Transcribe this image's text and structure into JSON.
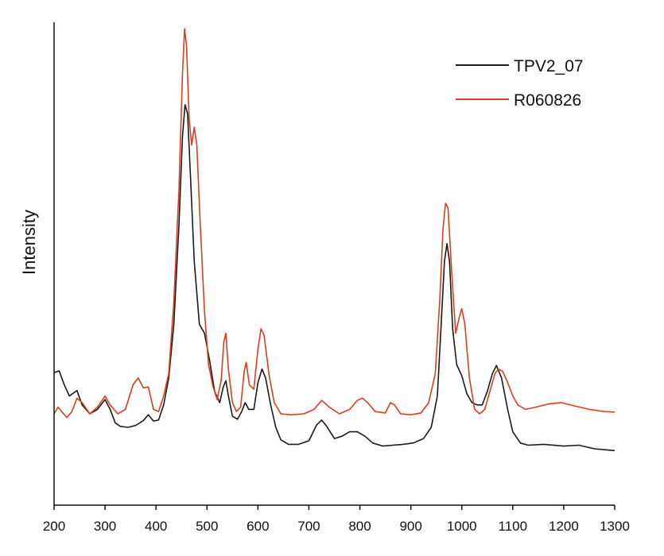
{
  "chart_data": {
    "type": "line",
    "title": "",
    "xlabel": "",
    "ylabel": "Intensity",
    "xlim": [
      200,
      1300
    ],
    "ylim": [
      0,
      1
    ],
    "x_ticks": [
      200,
      300,
      400,
      500,
      600,
      700,
      800,
      900,
      1000,
      1100,
      1200,
      1300
    ],
    "grid": false,
    "legend_position": "top-right",
    "series": [
      {
        "name": "TPV2_07",
        "color": "#1a1a1a",
        "points": [
          [
            200,
            0.232
          ],
          [
            210,
            0.236
          ],
          [
            220,
            0.205
          ],
          [
            230,
            0.18
          ],
          [
            245,
            0.192
          ],
          [
            255,
            0.16
          ],
          [
            270,
            0.14
          ],
          [
            285,
            0.15
          ],
          [
            300,
            0.172
          ],
          [
            310,
            0.15
          ],
          [
            320,
            0.12
          ],
          [
            330,
            0.112
          ],
          [
            345,
            0.11
          ],
          [
            360,
            0.114
          ],
          [
            375,
            0.125
          ],
          [
            385,
            0.138
          ],
          [
            395,
            0.124
          ],
          [
            405,
            0.126
          ],
          [
            415,
            0.16
          ],
          [
            425,
            0.22
          ],
          [
            435,
            0.34
          ],
          [
            445,
            0.56
          ],
          [
            452,
            0.76
          ],
          [
            457,
            0.83
          ],
          [
            462,
            0.81
          ],
          [
            468,
            0.66
          ],
          [
            475,
            0.48
          ],
          [
            485,
            0.34
          ],
          [
            495,
            0.32
          ],
          [
            505,
            0.26
          ],
          [
            515,
            0.19
          ],
          [
            525,
            0.165
          ],
          [
            532,
            0.2
          ],
          [
            537,
            0.214
          ],
          [
            542,
            0.18
          ],
          [
            550,
            0.135
          ],
          [
            560,
            0.128
          ],
          [
            568,
            0.145
          ],
          [
            575,
            0.165
          ],
          [
            582,
            0.15
          ],
          [
            592,
            0.15
          ],
          [
            600,
            0.21
          ],
          [
            608,
            0.24
          ],
          [
            615,
            0.22
          ],
          [
            625,
            0.16
          ],
          [
            635,
            0.11
          ],
          [
            645,
            0.082
          ],
          [
            660,
            0.072
          ],
          [
            680,
            0.072
          ],
          [
            700,
            0.08
          ],
          [
            715,
            0.115
          ],
          [
            725,
            0.126
          ],
          [
            735,
            0.112
          ],
          [
            750,
            0.085
          ],
          [
            765,
            0.09
          ],
          [
            780,
            0.1
          ],
          [
            795,
            0.1
          ],
          [
            810,
            0.09
          ],
          [
            825,
            0.075
          ],
          [
            845,
            0.068
          ],
          [
            865,
            0.07
          ],
          [
            885,
            0.072
          ],
          [
            905,
            0.075
          ],
          [
            925,
            0.085
          ],
          [
            940,
            0.11
          ],
          [
            952,
            0.18
          ],
          [
            960,
            0.35
          ],
          [
            966,
            0.48
          ],
          [
            971,
            0.52
          ],
          [
            976,
            0.48
          ],
          [
            982,
            0.33
          ],
          [
            990,
            0.25
          ],
          [
            1000,
            0.225
          ],
          [
            1010,
            0.185
          ],
          [
            1020,
            0.165
          ],
          [
            1030,
            0.16
          ],
          [
            1040,
            0.16
          ],
          [
            1050,
            0.19
          ],
          [
            1060,
            0.23
          ],
          [
            1068,
            0.248
          ],
          [
            1078,
            0.22
          ],
          [
            1090,
            0.15
          ],
          [
            1100,
            0.1
          ],
          [
            1115,
            0.075
          ],
          [
            1130,
            0.07
          ],
          [
            1160,
            0.072
          ],
          [
            1200,
            0.068
          ],
          [
            1230,
            0.07
          ],
          [
            1260,
            0.062
          ],
          [
            1300,
            0.058
          ]
        ]
      },
      {
        "name": "R060826",
        "color": "#e03c1c",
        "points": [
          [
            200,
            0.14
          ],
          [
            208,
            0.155
          ],
          [
            215,
            0.145
          ],
          [
            225,
            0.132
          ],
          [
            235,
            0.145
          ],
          [
            245,
            0.175
          ],
          [
            255,
            0.165
          ],
          [
            270,
            0.14
          ],
          [
            285,
            0.155
          ],
          [
            300,
            0.18
          ],
          [
            310,
            0.16
          ],
          [
            325,
            0.14
          ],
          [
            340,
            0.15
          ],
          [
            355,
            0.205
          ],
          [
            365,
            0.22
          ],
          [
            375,
            0.198
          ],
          [
            385,
            0.2
          ],
          [
            395,
            0.15
          ],
          [
            405,
            0.145
          ],
          [
            415,
            0.18
          ],
          [
            425,
            0.23
          ],
          [
            435,
            0.39
          ],
          [
            445,
            0.64
          ],
          [
            452,
            0.9
          ],
          [
            456,
            1.0
          ],
          [
            460,
            0.96
          ],
          [
            465,
            0.8
          ],
          [
            470,
            0.74
          ],
          [
            475,
            0.78
          ],
          [
            480,
            0.74
          ],
          [
            487,
            0.56
          ],
          [
            495,
            0.37
          ],
          [
            503,
            0.25
          ],
          [
            512,
            0.2
          ],
          [
            520,
            0.172
          ],
          [
            528,
            0.215
          ],
          [
            533,
            0.3
          ],
          [
            537,
            0.32
          ],
          [
            542,
            0.24
          ],
          [
            550,
            0.165
          ],
          [
            558,
            0.145
          ],
          [
            566,
            0.155
          ],
          [
            573,
            0.235
          ],
          [
            577,
            0.255
          ],
          [
            583,
            0.205
          ],
          [
            592,
            0.195
          ],
          [
            600,
            0.285
          ],
          [
            606,
            0.33
          ],
          [
            612,
            0.315
          ],
          [
            622,
            0.225
          ],
          [
            632,
            0.165
          ],
          [
            645,
            0.14
          ],
          [
            665,
            0.138
          ],
          [
            690,
            0.14
          ],
          [
            710,
            0.15
          ],
          [
            725,
            0.17
          ],
          [
            740,
            0.155
          ],
          [
            760,
            0.14
          ],
          [
            780,
            0.15
          ],
          [
            795,
            0.17
          ],
          [
            805,
            0.175
          ],
          [
            815,
            0.165
          ],
          [
            830,
            0.145
          ],
          [
            850,
            0.142
          ],
          [
            860,
            0.165
          ],
          [
            868,
            0.16
          ],
          [
            880,
            0.14
          ],
          [
            900,
            0.138
          ],
          [
            920,
            0.142
          ],
          [
            935,
            0.165
          ],
          [
            948,
            0.23
          ],
          [
            957,
            0.4
          ],
          [
            963,
            0.55
          ],
          [
            968,
            0.61
          ],
          [
            973,
            0.6
          ],
          [
            980,
            0.46
          ],
          [
            988,
            0.32
          ],
          [
            995,
            0.355
          ],
          [
            1000,
            0.375
          ],
          [
            1006,
            0.34
          ],
          [
            1015,
            0.22
          ],
          [
            1025,
            0.15
          ],
          [
            1035,
            0.14
          ],
          [
            1045,
            0.15
          ],
          [
            1055,
            0.19
          ],
          [
            1065,
            0.23
          ],
          [
            1072,
            0.24
          ],
          [
            1080,
            0.235
          ],
          [
            1090,
            0.21
          ],
          [
            1100,
            0.18
          ],
          [
            1110,
            0.16
          ],
          [
            1125,
            0.15
          ],
          [
            1145,
            0.155
          ],
          [
            1170,
            0.162
          ],
          [
            1195,
            0.165
          ],
          [
            1220,
            0.158
          ],
          [
            1250,
            0.15
          ],
          [
            1280,
            0.145
          ],
          [
            1300,
            0.144
          ]
        ]
      }
    ]
  }
}
